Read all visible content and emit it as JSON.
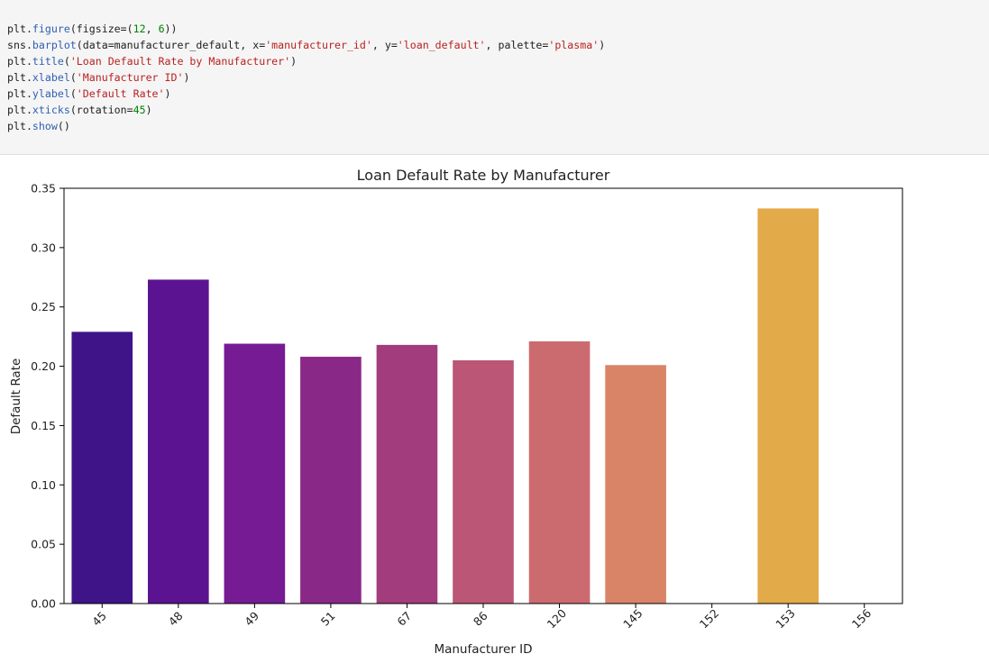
{
  "code_cell": {
    "lines": [
      [
        {
          "t": "plain",
          "s": "plt."
        },
        {
          "t": "fn",
          "s": "figure"
        },
        {
          "t": "plain",
          "s": "(figsize=("
        },
        {
          "t": "num",
          "s": "12"
        },
        {
          "t": "plain",
          "s": ", "
        },
        {
          "t": "num",
          "s": "6"
        },
        {
          "t": "plain",
          "s": "))"
        }
      ],
      [
        {
          "t": "plain",
          "s": "sns."
        },
        {
          "t": "fn",
          "s": "barplot"
        },
        {
          "t": "plain",
          "s": "(data=manufacturer_default, x="
        },
        {
          "t": "str",
          "s": "'manufacturer_id'"
        },
        {
          "t": "plain",
          "s": ", y="
        },
        {
          "t": "str",
          "s": "'loan_default'"
        },
        {
          "t": "plain",
          "s": ", palette="
        },
        {
          "t": "str",
          "s": "'plasma'"
        },
        {
          "t": "plain",
          "s": ")"
        }
      ],
      [
        {
          "t": "plain",
          "s": "plt."
        },
        {
          "t": "fn",
          "s": "title"
        },
        {
          "t": "plain",
          "s": "("
        },
        {
          "t": "str",
          "s": "'Loan Default Rate by Manufacturer'"
        },
        {
          "t": "plain",
          "s": ")"
        }
      ],
      [
        {
          "t": "plain",
          "s": "plt."
        },
        {
          "t": "fn",
          "s": "xlabel"
        },
        {
          "t": "plain",
          "s": "("
        },
        {
          "t": "str",
          "s": "'Manufacturer ID'"
        },
        {
          "t": "plain",
          "s": ")"
        }
      ],
      [
        {
          "t": "plain",
          "s": "plt."
        },
        {
          "t": "fn",
          "s": "ylabel"
        },
        {
          "t": "plain",
          "s": "("
        },
        {
          "t": "str",
          "s": "'Default Rate'"
        },
        {
          "t": "plain",
          "s": ")"
        }
      ],
      [
        {
          "t": "plain",
          "s": "plt."
        },
        {
          "t": "fn",
          "s": "xticks"
        },
        {
          "t": "plain",
          "s": "(rotation="
        },
        {
          "t": "num",
          "s": "45"
        },
        {
          "t": "plain",
          "s": ")"
        }
      ],
      [
        {
          "t": "plain",
          "s": "plt."
        },
        {
          "t": "fn",
          "s": "show"
        },
        {
          "t": "plain",
          "s": "()"
        }
      ]
    ]
  },
  "chart_data": {
    "type": "bar",
    "title": "Loan Default Rate by Manufacturer",
    "xlabel": "Manufacturer ID",
    "ylabel": "Default Rate",
    "categories": [
      "45",
      "48",
      "49",
      "51",
      "67",
      "86",
      "120",
      "145",
      "152",
      "153",
      "156"
    ],
    "values": [
      0.229,
      0.273,
      0.219,
      0.208,
      0.218,
      0.205,
      0.221,
      0.201,
      0.0,
      0.333,
      0.0
    ],
    "colors": [
      "#3f1489",
      "#5c1391",
      "#761b94",
      "#8a2888",
      "#a23c7c",
      "#bb5676",
      "#cc6b6f",
      "#d98467",
      "#e89b58",
      "#e2aa48",
      "#efc63e"
    ],
    "ylim": [
      0,
      0.35
    ],
    "yticks": [
      "0.00",
      "0.05",
      "0.10",
      "0.15",
      "0.20",
      "0.25",
      "0.30",
      "0.35"
    ],
    "ytick_values": [
      0,
      0.05,
      0.1,
      0.15,
      0.2,
      0.25,
      0.3,
      0.35
    ],
    "xtick_rotation": 45,
    "grid": false,
    "legend": "none"
  }
}
